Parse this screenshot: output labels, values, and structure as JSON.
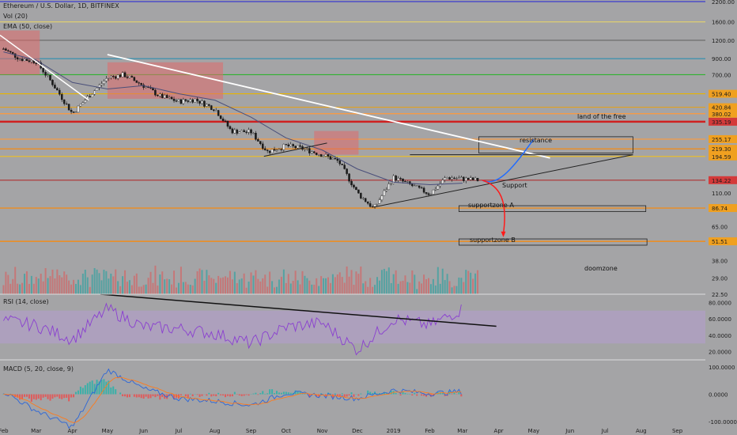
{
  "legend": {
    "symbol": "Ethereum / U.S. Dollar, 1D, BITFINEX",
    "volume": "Vol (20)",
    "ema": "EMA (50, close)",
    "rsi": "RSI (14, close)",
    "macd": "MACD (5, 20, close, 9)"
  },
  "chart_data": {
    "type": "line",
    "price_axis": {
      "scale": "log",
      "ticks": [
        "2200.00",
        "1600.00",
        "1200.00",
        "900.00",
        "700.00",
        "519.40",
        "420.84",
        "380.02",
        "335.19",
        "255.17",
        "219.30",
        "194.59",
        "134.22",
        "110.00",
        "86.74",
        "65.00",
        "51.51",
        "38.00",
        "29.00",
        "22.50"
      ]
    },
    "highlighted_price_labels": [
      "519.40",
      "420.84",
      "380.02",
      "335.19",
      "255.17",
      "219.30",
      "194.59",
      "134.22",
      "86.74",
      "51.51"
    ],
    "rsi_axis": {
      "ticks": [
        "80.0000",
        "60.0000",
        "40.0000",
        "20.0000"
      ]
    },
    "macd_axis": {
      "ticks": [
        "100.0000",
        "0.0000",
        "-100.0000"
      ]
    },
    "time_axis": [
      "Feb",
      "Mar",
      "Apr",
      "May",
      "Jun",
      "Jul",
      "Aug",
      "Sep",
      "Oct",
      "Nov",
      "Dec",
      "2019",
      "Feb",
      "Mar",
      "Apr",
      "May",
      "Jun",
      "Jul",
      "Aug",
      "Sep"
    ],
    "price_series": {
      "name": "ETHUSD",
      "dates": [
        "2018-02-01",
        "2018-02-15",
        "2018-03-01",
        "2018-03-15",
        "2018-04-01",
        "2018-04-15",
        "2018-05-01",
        "2018-05-15",
        "2018-06-01",
        "2018-06-15",
        "2018-07-01",
        "2018-07-15",
        "2018-08-01",
        "2018-08-15",
        "2018-09-01",
        "2018-09-15",
        "2018-10-01",
        "2018-10-15",
        "2018-11-01",
        "2018-11-15",
        "2018-12-01",
        "2018-12-15",
        "2019-01-01",
        "2019-01-15",
        "2019-02-01",
        "2019-02-15",
        "2019-03-01",
        "2019-03-15"
      ],
      "close": [
        1050,
        900,
        860,
        610,
        380,
        500,
        670,
        700,
        590,
        500,
        460,
        475,
        410,
        290,
        285,
        210,
        230,
        220,
        200,
        180,
        110,
        86,
        140,
        125,
        108,
        140,
        137,
        134
      ]
    },
    "ema_series": {
      "name": "EMA (50, close)",
      "dates": [
        "2018-02-01",
        "2018-03-01",
        "2018-04-01",
        "2018-05-01",
        "2018-06-01",
        "2018-07-01",
        "2018-08-01",
        "2018-09-01",
        "2018-10-01",
        "2018-11-01",
        "2018-12-01",
        "2019-01-01",
        "2019-02-01",
        "2019-03-01"
      ],
      "values": [
        1000,
        880,
        620,
        560,
        590,
        520,
        470,
        360,
        260,
        215,
        160,
        130,
        125,
        128
      ]
    },
    "rsi_series": {
      "dates": [
        "2018-02-01",
        "2018-03-01",
        "2018-04-01",
        "2018-05-01",
        "2018-06-01",
        "2018-07-01",
        "2018-08-01",
        "2018-09-01",
        "2018-10-01",
        "2018-11-01",
        "2018-12-01",
        "2019-01-01",
        "2019-02-01",
        "2019-03-01"
      ],
      "values": [
        58,
        52,
        35,
        72,
        50,
        48,
        42,
        30,
        50,
        55,
        22,
        60,
        52,
        72
      ]
    },
    "macd_series": {
      "dates": [
        "2018-02-01",
        "2018-03-01",
        "2018-04-01",
        "2018-05-01",
        "2018-06-01",
        "2018-07-01",
        "2018-08-01",
        "2018-09-01",
        "2018-10-01",
        "2018-11-01",
        "2018-12-01",
        "2019-01-01",
        "2019-02-01",
        "2019-03-01"
      ],
      "values": [
        10,
        -60,
        -120,
        90,
        20,
        -15,
        -25,
        -40,
        5,
        -5,
        -15,
        15,
        3,
        10
      ]
    }
  },
  "annotations": {
    "resistance": "resistance",
    "support": "Support",
    "supportzone_a": "supportzone A",
    "supportzone_b": "supportzone B",
    "doomzone": "doomzone",
    "land": "land of the free"
  },
  "colors": {
    "background": "#a4a4a6",
    "price_line": "#1b1b1b",
    "ema": "#4a4f7a",
    "rsi": "#8a3fd0",
    "rsi_band": "#b49ccf",
    "macd": "#2c66d8",
    "signal": "#ff7a1a",
    "trendline": "#ffffff",
    "resistance_arrow": "#1f6bff",
    "support_arrow": "#ff1a1a"
  }
}
